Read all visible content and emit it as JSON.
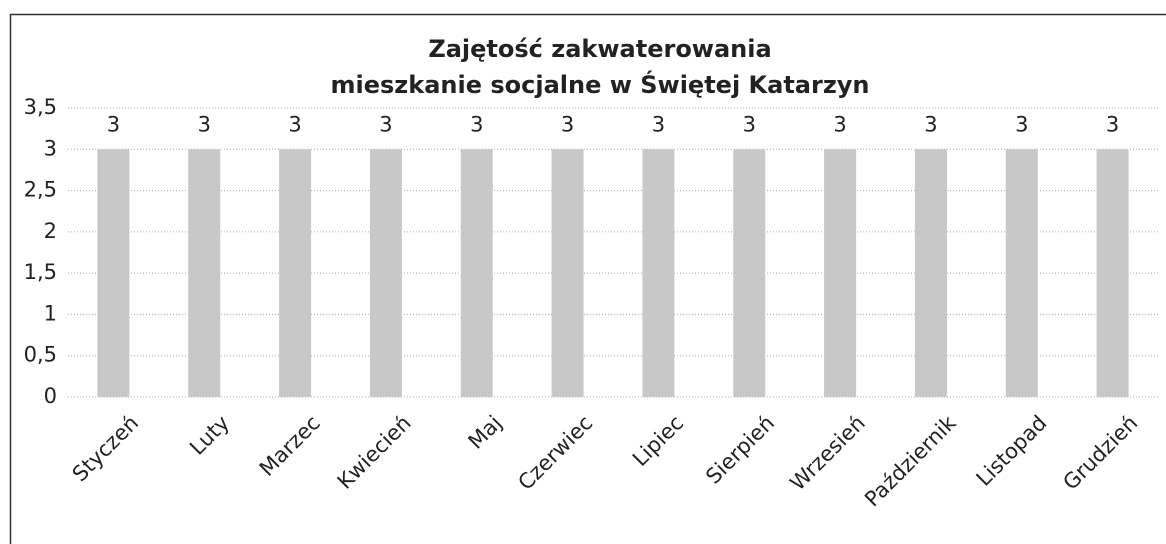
{
  "chart_data": {
    "type": "bar",
    "title": [
      "Zajętość zakwaterowania",
      "mieszkanie socjalne w Świętej Katarzyn"
    ],
    "categories": [
      "Styczeń",
      "Luty",
      "Marzec",
      "Kwiecień",
      "Maj",
      "Czerwiec",
      "Lipiec",
      "Sierpień",
      "Wrzesień",
      "Październik",
      "Listopad",
      "Grudzień"
    ],
    "values": [
      3,
      3,
      3,
      3,
      3,
      3,
      3,
      3,
      3,
      3,
      3,
      3
    ],
    "color": "#c8c8c8",
    "ylim": [
      0,
      3.5
    ],
    "yticks": [
      0,
      {
        "value": 0.5,
        "label": "0,5"
      },
      1,
      {
        "value": 1.5,
        "label": "1,5"
      },
      2,
      {
        "value": 2.5,
        "label": "2,5"
      },
      3,
      {
        "value": 3.5,
        "label": "3,5"
      }
    ],
    "grid": true
  }
}
